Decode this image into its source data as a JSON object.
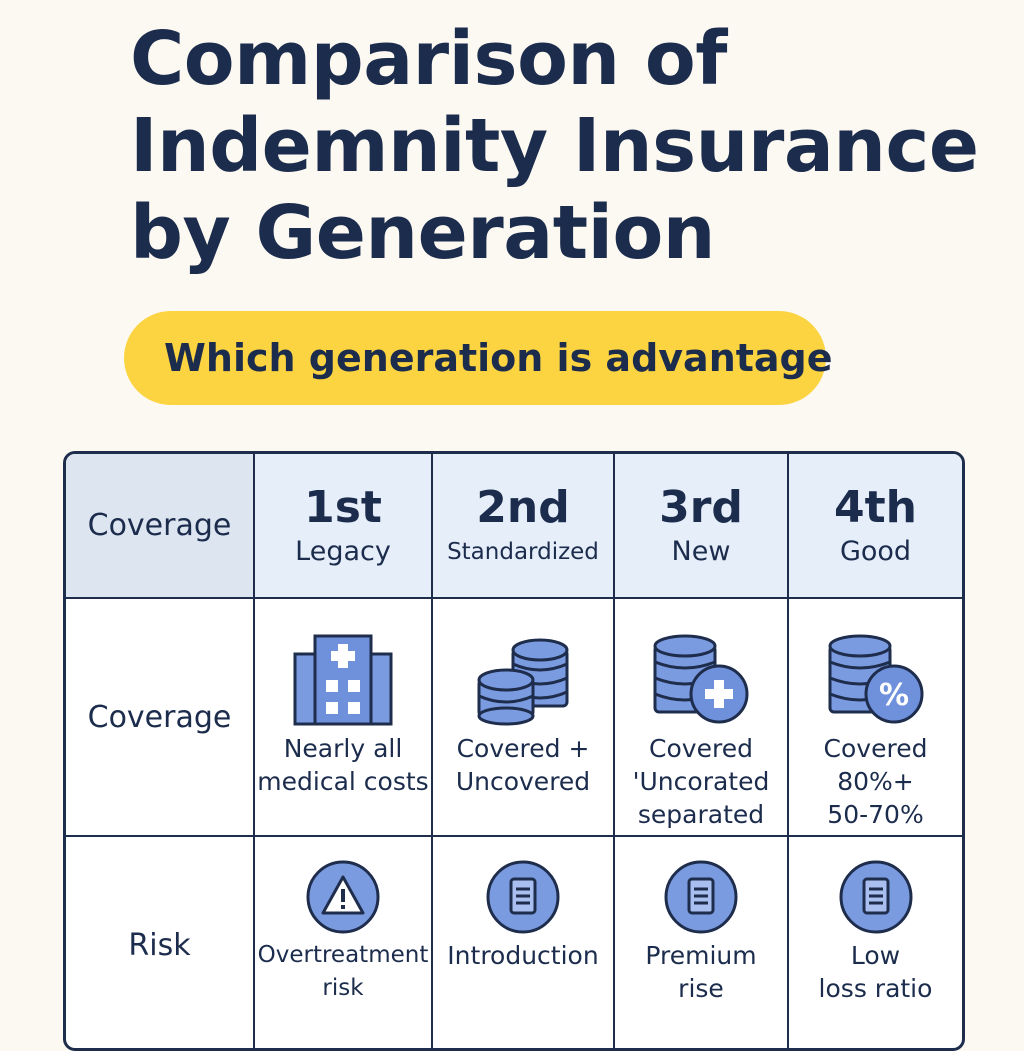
{
  "title_lines": [
    "Comparison of",
    "Indemnity Insurance",
    "by Generation"
  ],
  "subtitle": "Which generation is advantage",
  "table": {
    "corner_label": "Coverage",
    "generations": [
      {
        "num": "1st",
        "label": "Legacy"
      },
      {
        "num": "2nd",
        "label": "Standardized"
      },
      {
        "num": "3rd",
        "label": "New"
      },
      {
        "num": "4th",
        "label": "Good"
      }
    ],
    "rows": [
      {
        "label": "Coverage",
        "cells": [
          {
            "icon": "hospital-icon",
            "text": "Nearly all\nmedical costs"
          },
          {
            "icon": "coin-stack-icon",
            "text": "Covered +\nUncovered"
          },
          {
            "icon": "coin-plus-icon",
            "text": "Covered\n'Uncorated\nseparated"
          },
          {
            "icon": "coin-percent-icon",
            "text": "Covered\n80%+\n50-70%"
          }
        ]
      },
      {
        "label": "Risk",
        "cells": [
          {
            "icon": "warning-icon",
            "text": "Overtreatment\nrisk"
          },
          {
            "icon": "document-icon",
            "text": "Introduction"
          },
          {
            "icon": "document-icon",
            "text": "Premium\nrise"
          },
          {
            "icon": "document-icon",
            "text": "Low\nloss ratio"
          }
        ]
      }
    ]
  },
  "colors": {
    "background": "#fcf9f3",
    "title": "#1c2c4c",
    "pill": "#fcd441",
    "header_fill": "#e6eefa",
    "icon_fill": "#7b9be0",
    "icon_stroke": "#1f2d4d"
  }
}
